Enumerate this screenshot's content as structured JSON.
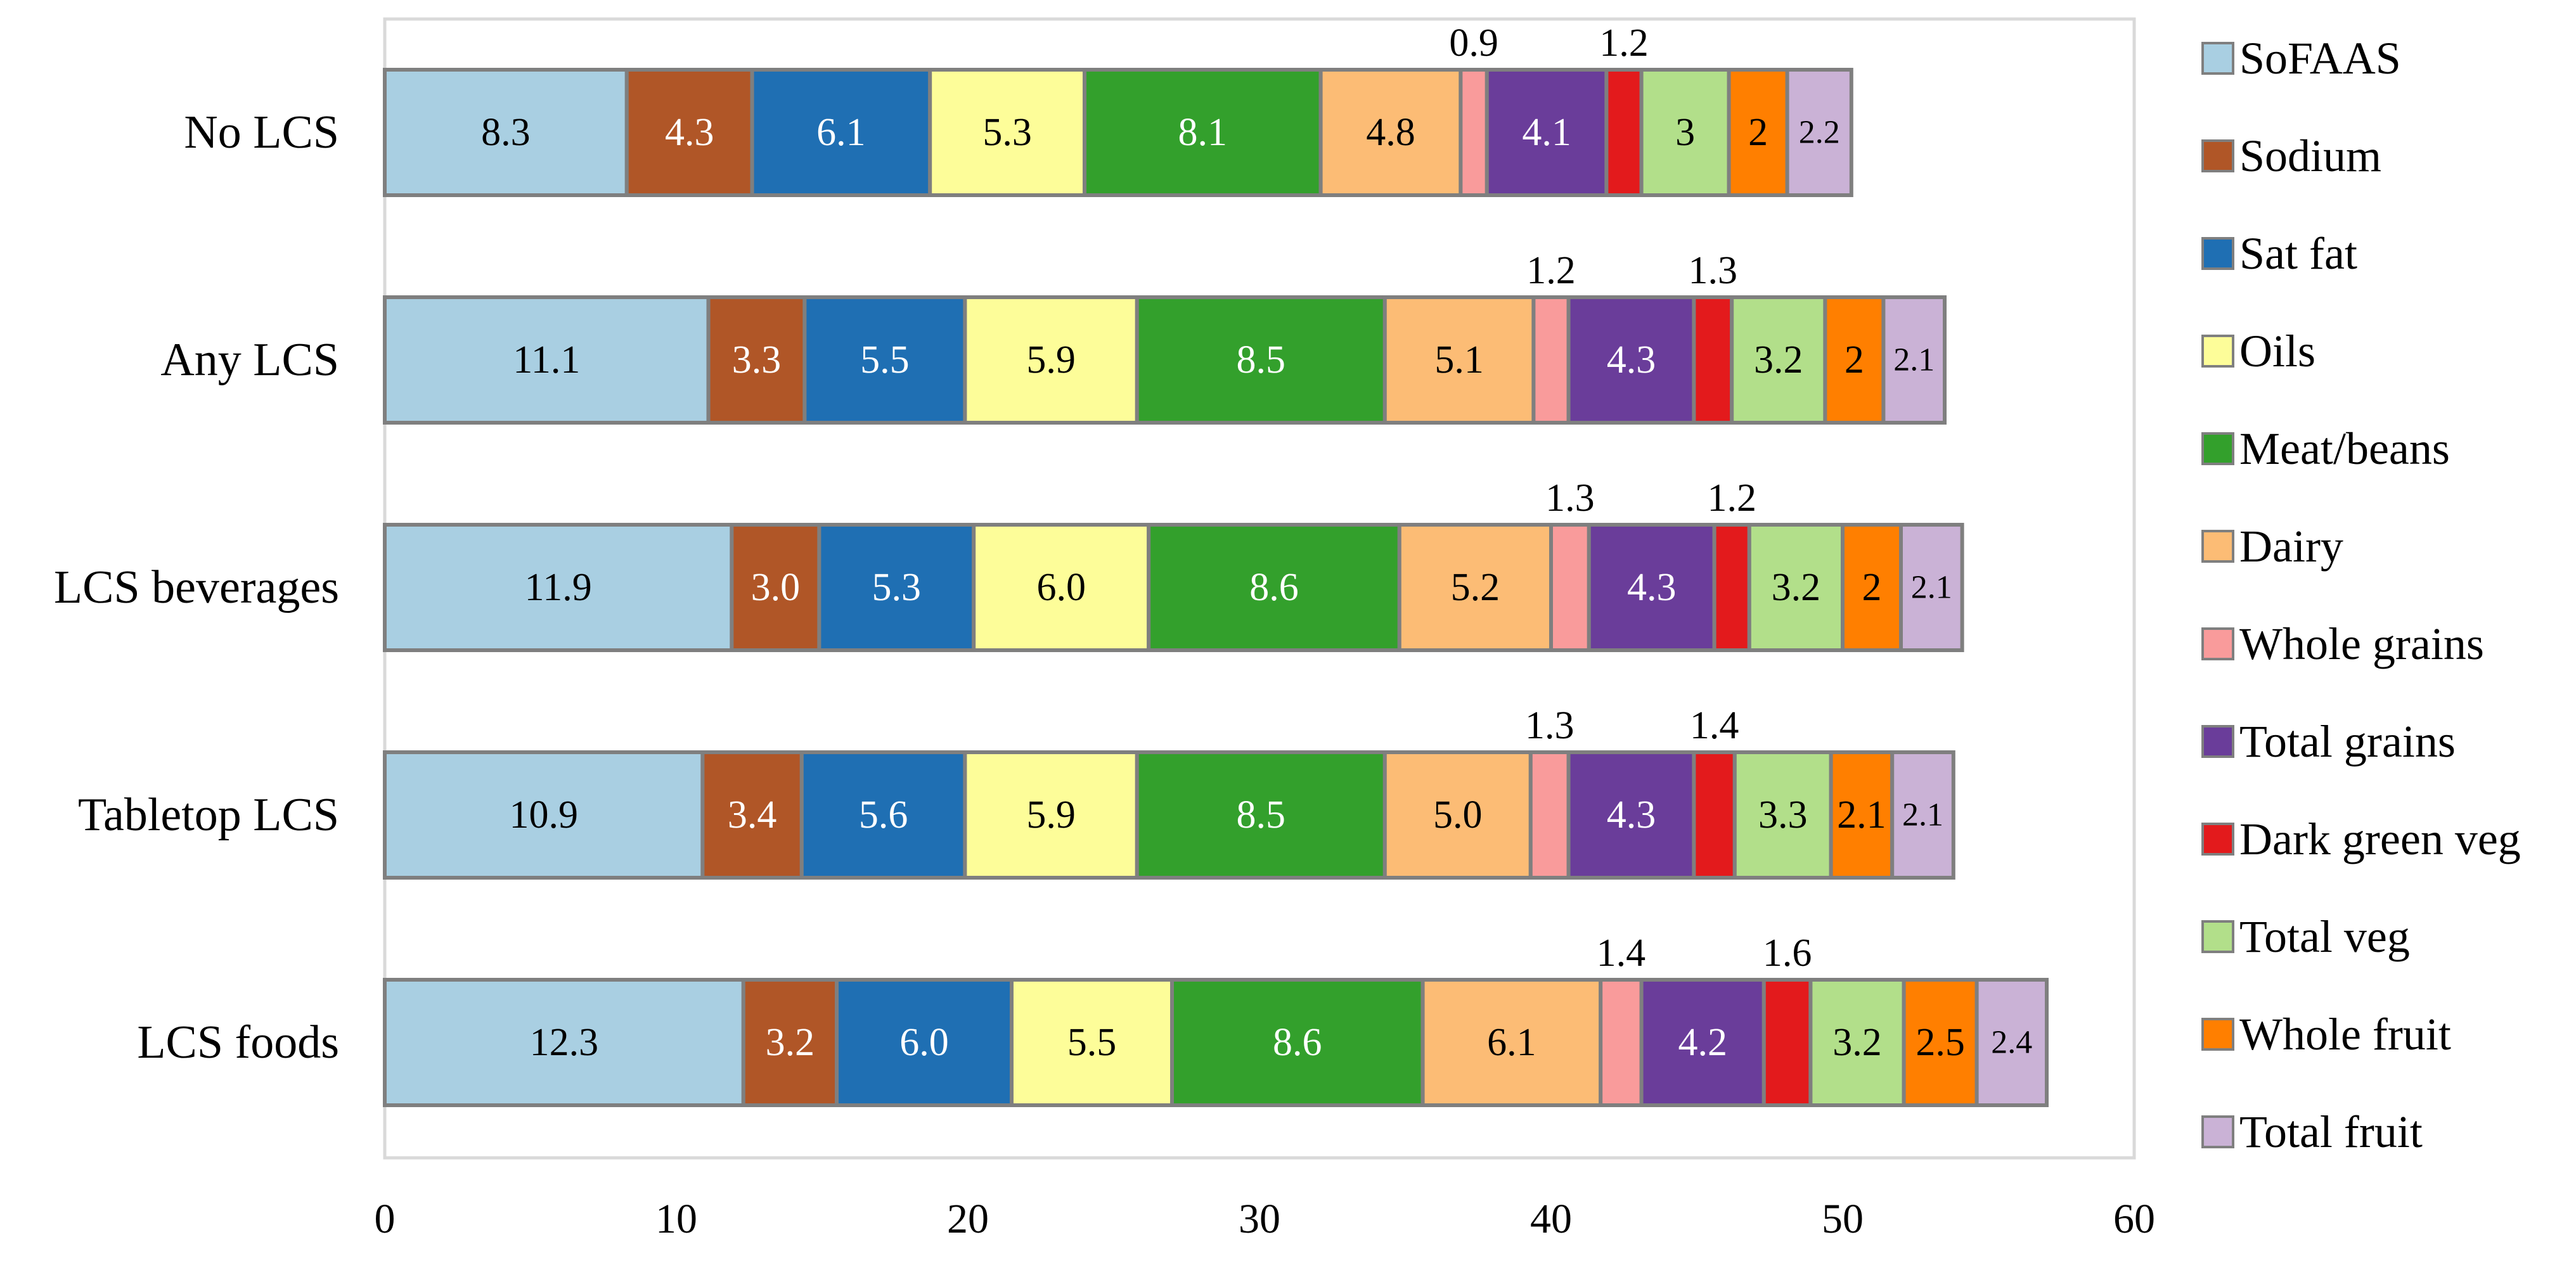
{
  "colors": {
    "plot_border": "#d9d9d9",
    "bar_stroke": "#7f7f7f",
    "text": "#000000",
    "text_light": "#ffffff"
  },
  "chart_data": {
    "type": "bar",
    "orientation": "horizontal",
    "stacked": true,
    "title": "",
    "xlabel": "",
    "ylabel": "",
    "xlim": [
      0,
      60
    ],
    "xticks": [
      "0",
      "10",
      "20",
      "30",
      "40",
      "50",
      "60"
    ],
    "grid": false,
    "legend_position": "right",
    "categories": [
      "No LCS",
      "Any LCS",
      "LCS beverages",
      "Tabletop LCS",
      "LCS foods"
    ],
    "series": [
      {
        "name": "SoFAAS",
        "color": "#a9cfe2",
        "label_color": "#000000",
        "values": [
          8.3,
          11.1,
          11.9,
          10.9,
          12.3
        ],
        "labels": [
          "8.3",
          "11.1",
          "11.9",
          "10.9",
          "12.3"
        ]
      },
      {
        "name": "Sodium",
        "color": "#b05627",
        "label_color": "#ffffff",
        "values": [
          4.3,
          3.3,
          3.0,
          3.4,
          3.2
        ],
        "labels": [
          "4.3",
          "3.3",
          "3.0",
          "3.4",
          "3.2"
        ]
      },
      {
        "name": "Sat fat",
        "color": "#1f6fb3",
        "label_color": "#ffffff",
        "values": [
          6.1,
          5.5,
          5.3,
          5.6,
          6.0
        ],
        "labels": [
          "6.1",
          "5.5",
          "5.3",
          "5.6",
          "6.0"
        ]
      },
      {
        "name": "Oils",
        "color": "#fdfd99",
        "label_color": "#000000",
        "values": [
          5.3,
          5.9,
          6.0,
          5.9,
          5.5
        ],
        "labels": [
          "5.3",
          "5.9",
          "6.0",
          "5.9",
          "5.5"
        ]
      },
      {
        "name": "Meat/beans",
        "color": "#33a02c",
        "label_color": "#ffffff",
        "values": [
          8.1,
          8.5,
          8.6,
          8.5,
          8.6
        ],
        "labels": [
          "8.1",
          "8.5",
          "8.6",
          "8.5",
          "8.6"
        ]
      },
      {
        "name": "Dairy",
        "color": "#fcbc75",
        "label_color": "#000000",
        "values": [
          4.8,
          5.1,
          5.2,
          5.0,
          6.1
        ],
        "labels": [
          "4.8",
          "5.1",
          "5.2",
          "5.0",
          "6.1"
        ]
      },
      {
        "name": "Whole grains",
        "color": "#f99b9b",
        "label_color": "#000000",
        "label_outside": true,
        "values": [
          0.9,
          1.2,
          1.3,
          1.3,
          1.4
        ],
        "labels": [
          "0.9",
          "1.2",
          "1.3",
          "1.3",
          "1.4"
        ]
      },
      {
        "name": "Total grains",
        "color": "#6a3d9a",
        "label_color": "#ffffff",
        "values": [
          4.1,
          4.3,
          4.3,
          4.3,
          4.2
        ],
        "labels": [
          "4.1",
          "4.3",
          "4.3",
          "4.3",
          "4.2"
        ]
      },
      {
        "name": "Dark green veg",
        "color": "#e31a1c",
        "label_color": "#000000",
        "label_outside": true,
        "values": [
          1.2,
          1.3,
          1.2,
          1.4,
          1.6
        ],
        "labels": [
          "1.2",
          "1.3",
          "1.2",
          "1.4",
          "1.6"
        ]
      },
      {
        "name": "Total veg",
        "color": "#b2df8a",
        "label_color": "#000000",
        "values": [
          3.0,
          3.2,
          3.2,
          3.3,
          3.2
        ],
        "labels": [
          "3",
          "3.2",
          "3.2",
          "3.3",
          "3.2"
        ]
      },
      {
        "name": "Whole fruit",
        "color": "#ff7f00",
        "label_color": "#000000",
        "values": [
          2.0,
          2.0,
          2.0,
          2.1,
          2.5
        ],
        "labels": [
          "2",
          "2",
          "2",
          "2.1",
          "2.5"
        ]
      },
      {
        "name": "Total fruit",
        "color": "#cab2d6",
        "label_color": "#000000",
        "small_label": true,
        "values": [
          2.2,
          2.1,
          2.1,
          2.1,
          2.4
        ],
        "labels": [
          "2.2",
          "2.1",
          "2.1",
          "2.1",
          "2.4"
        ]
      }
    ]
  }
}
